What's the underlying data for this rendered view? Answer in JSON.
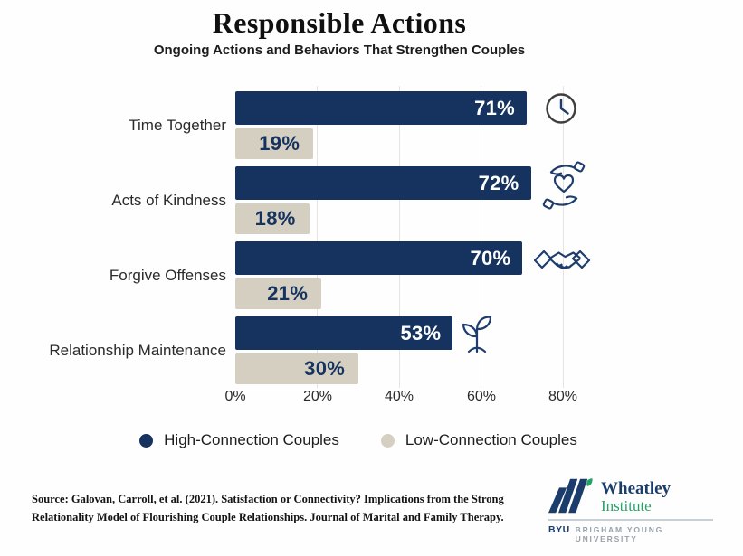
{
  "header": {
    "title": "Responsible Actions",
    "subtitle": "Ongoing Actions and Behaviors That Strengthen Couples"
  },
  "chart_data": {
    "type": "bar",
    "orientation": "horizontal",
    "title": "Responsible Actions",
    "subtitle": "Ongoing Actions and Behaviors That Strengthen Couples",
    "categories": [
      "Time Together",
      "Acts of Kindness",
      "Forgive Offenses",
      "Relationship Maintenance"
    ],
    "series": [
      {
        "name": "High-Connection Couples",
        "color": "#15335e",
        "values": [
          71,
          72,
          70,
          53
        ],
        "labels": [
          "71%",
          "72%",
          "70%",
          "53%"
        ]
      },
      {
        "name": "Low-Connection Couples",
        "color": "#d5cfc1",
        "values": [
          19,
          18,
          21,
          30
        ],
        "labels": [
          "19%",
          "18%",
          "21%",
          "30%"
        ]
      }
    ],
    "x_ticks": [
      "0%",
      "20%",
      "40%",
      "60%",
      "80%"
    ],
    "xlim": [
      0,
      80
    ],
    "grid": true,
    "legend_position": "bottom",
    "row_icons": [
      "clock-icon",
      "hands-holding-heart-icon",
      "handshake-icon",
      "sprout-icon"
    ]
  },
  "colors": {
    "high_connection": "#15335e",
    "low_connection": "#d5cfc1",
    "gridline": "#e6e4df",
    "icon_stroke": "#1e3d6e",
    "wheatley_navy": "#1c3c6b",
    "wheatley_green": "#2ba169"
  },
  "footer": {
    "source_line1": "Source: Galovan, Carroll, et al. (2021). Satisfaction or Connectivity? Implications from the Strong",
    "source_line2": "Relationality Model of Flourishing Couple Relationships. Journal of Marital and Family Therapy.",
    "logo": {
      "name": "Wheatley",
      "name2": "Institute",
      "byu": "BYU",
      "byu_text": "BRIGHAM YOUNG UNIVERSITY"
    }
  }
}
